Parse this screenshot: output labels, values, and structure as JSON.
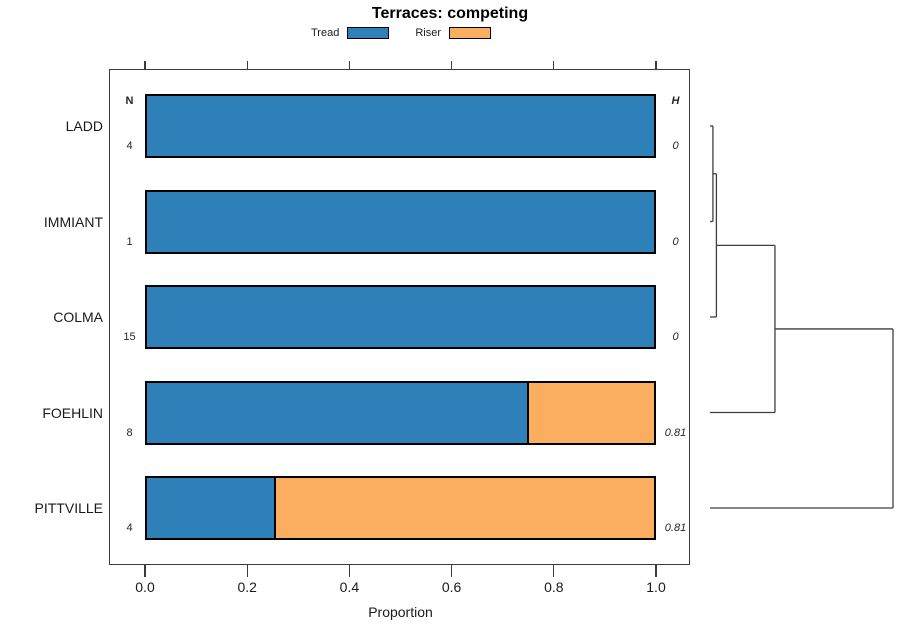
{
  "chart_data": {
    "type": "bar",
    "orientation": "horizontal",
    "stacked": true,
    "title": "Terraces: competing",
    "xlabel": "Proportion",
    "xlim": [
      0.0,
      1.0
    ],
    "x_ticks": [
      0.0,
      0.2,
      0.4,
      0.6,
      0.8,
      1.0
    ],
    "x_tick_labels": [
      "0.0",
      "0.2",
      "0.4",
      "0.6",
      "0.8",
      "1.0"
    ],
    "grid": false,
    "legend": {
      "position": "top",
      "entries": [
        {
          "label": "Tread",
          "color": "#2E81B8"
        },
        {
          "label": "Riser",
          "color": "#FBAD60"
        }
      ]
    },
    "columns": {
      "left_header": "N",
      "right_header": "H"
    },
    "categories": [
      "LADD",
      "IMMIANT",
      "COLMA",
      "FOEHLIN",
      "PITTVILLE"
    ],
    "rows": [
      {
        "label": "LADD",
        "n": "4",
        "h": "0",
        "tread": 1.0,
        "riser": 0.0
      },
      {
        "label": "IMMIANT",
        "n": "1",
        "h": "0",
        "tread": 1.0,
        "riser": 0.0
      },
      {
        "label": "COLMA",
        "n": "15",
        "h": "0",
        "tread": 1.0,
        "riser": 0.0
      },
      {
        "label": "FOEHLIN",
        "n": "8",
        "h": "0.81",
        "tread": 0.75,
        "riser": 0.25
      },
      {
        "label": "PITTVILLE",
        "n": "4",
        "h": "0.81",
        "tread": 0.25,
        "riser": 0.75
      }
    ],
    "series": [
      {
        "name": "Tread",
        "values": [
          1.0,
          1.0,
          1.0,
          0.75,
          0.25
        ]
      },
      {
        "name": "Riser",
        "values": [
          0.0,
          0.0,
          0.0,
          0.25,
          0.75
        ]
      }
    ],
    "colors": {
      "tread": "#2E81B8",
      "riser": "#FBAD60"
    },
    "dendrogram": {
      "side": "right",
      "leaf_order": [
        "LADD",
        "IMMIANT",
        "COLMA",
        "FOEHLIN",
        "PITTVILLE"
      ],
      "merges": [
        {
          "a": 0,
          "b": 1,
          "height": 0.016
        },
        {
          "a": 5,
          "b": 2,
          "height": 0.035
        },
        {
          "a": 6,
          "b": 3,
          "height": 0.355
        },
        {
          "a": 7,
          "b": 4,
          "height": 1.0
        }
      ]
    }
  }
}
